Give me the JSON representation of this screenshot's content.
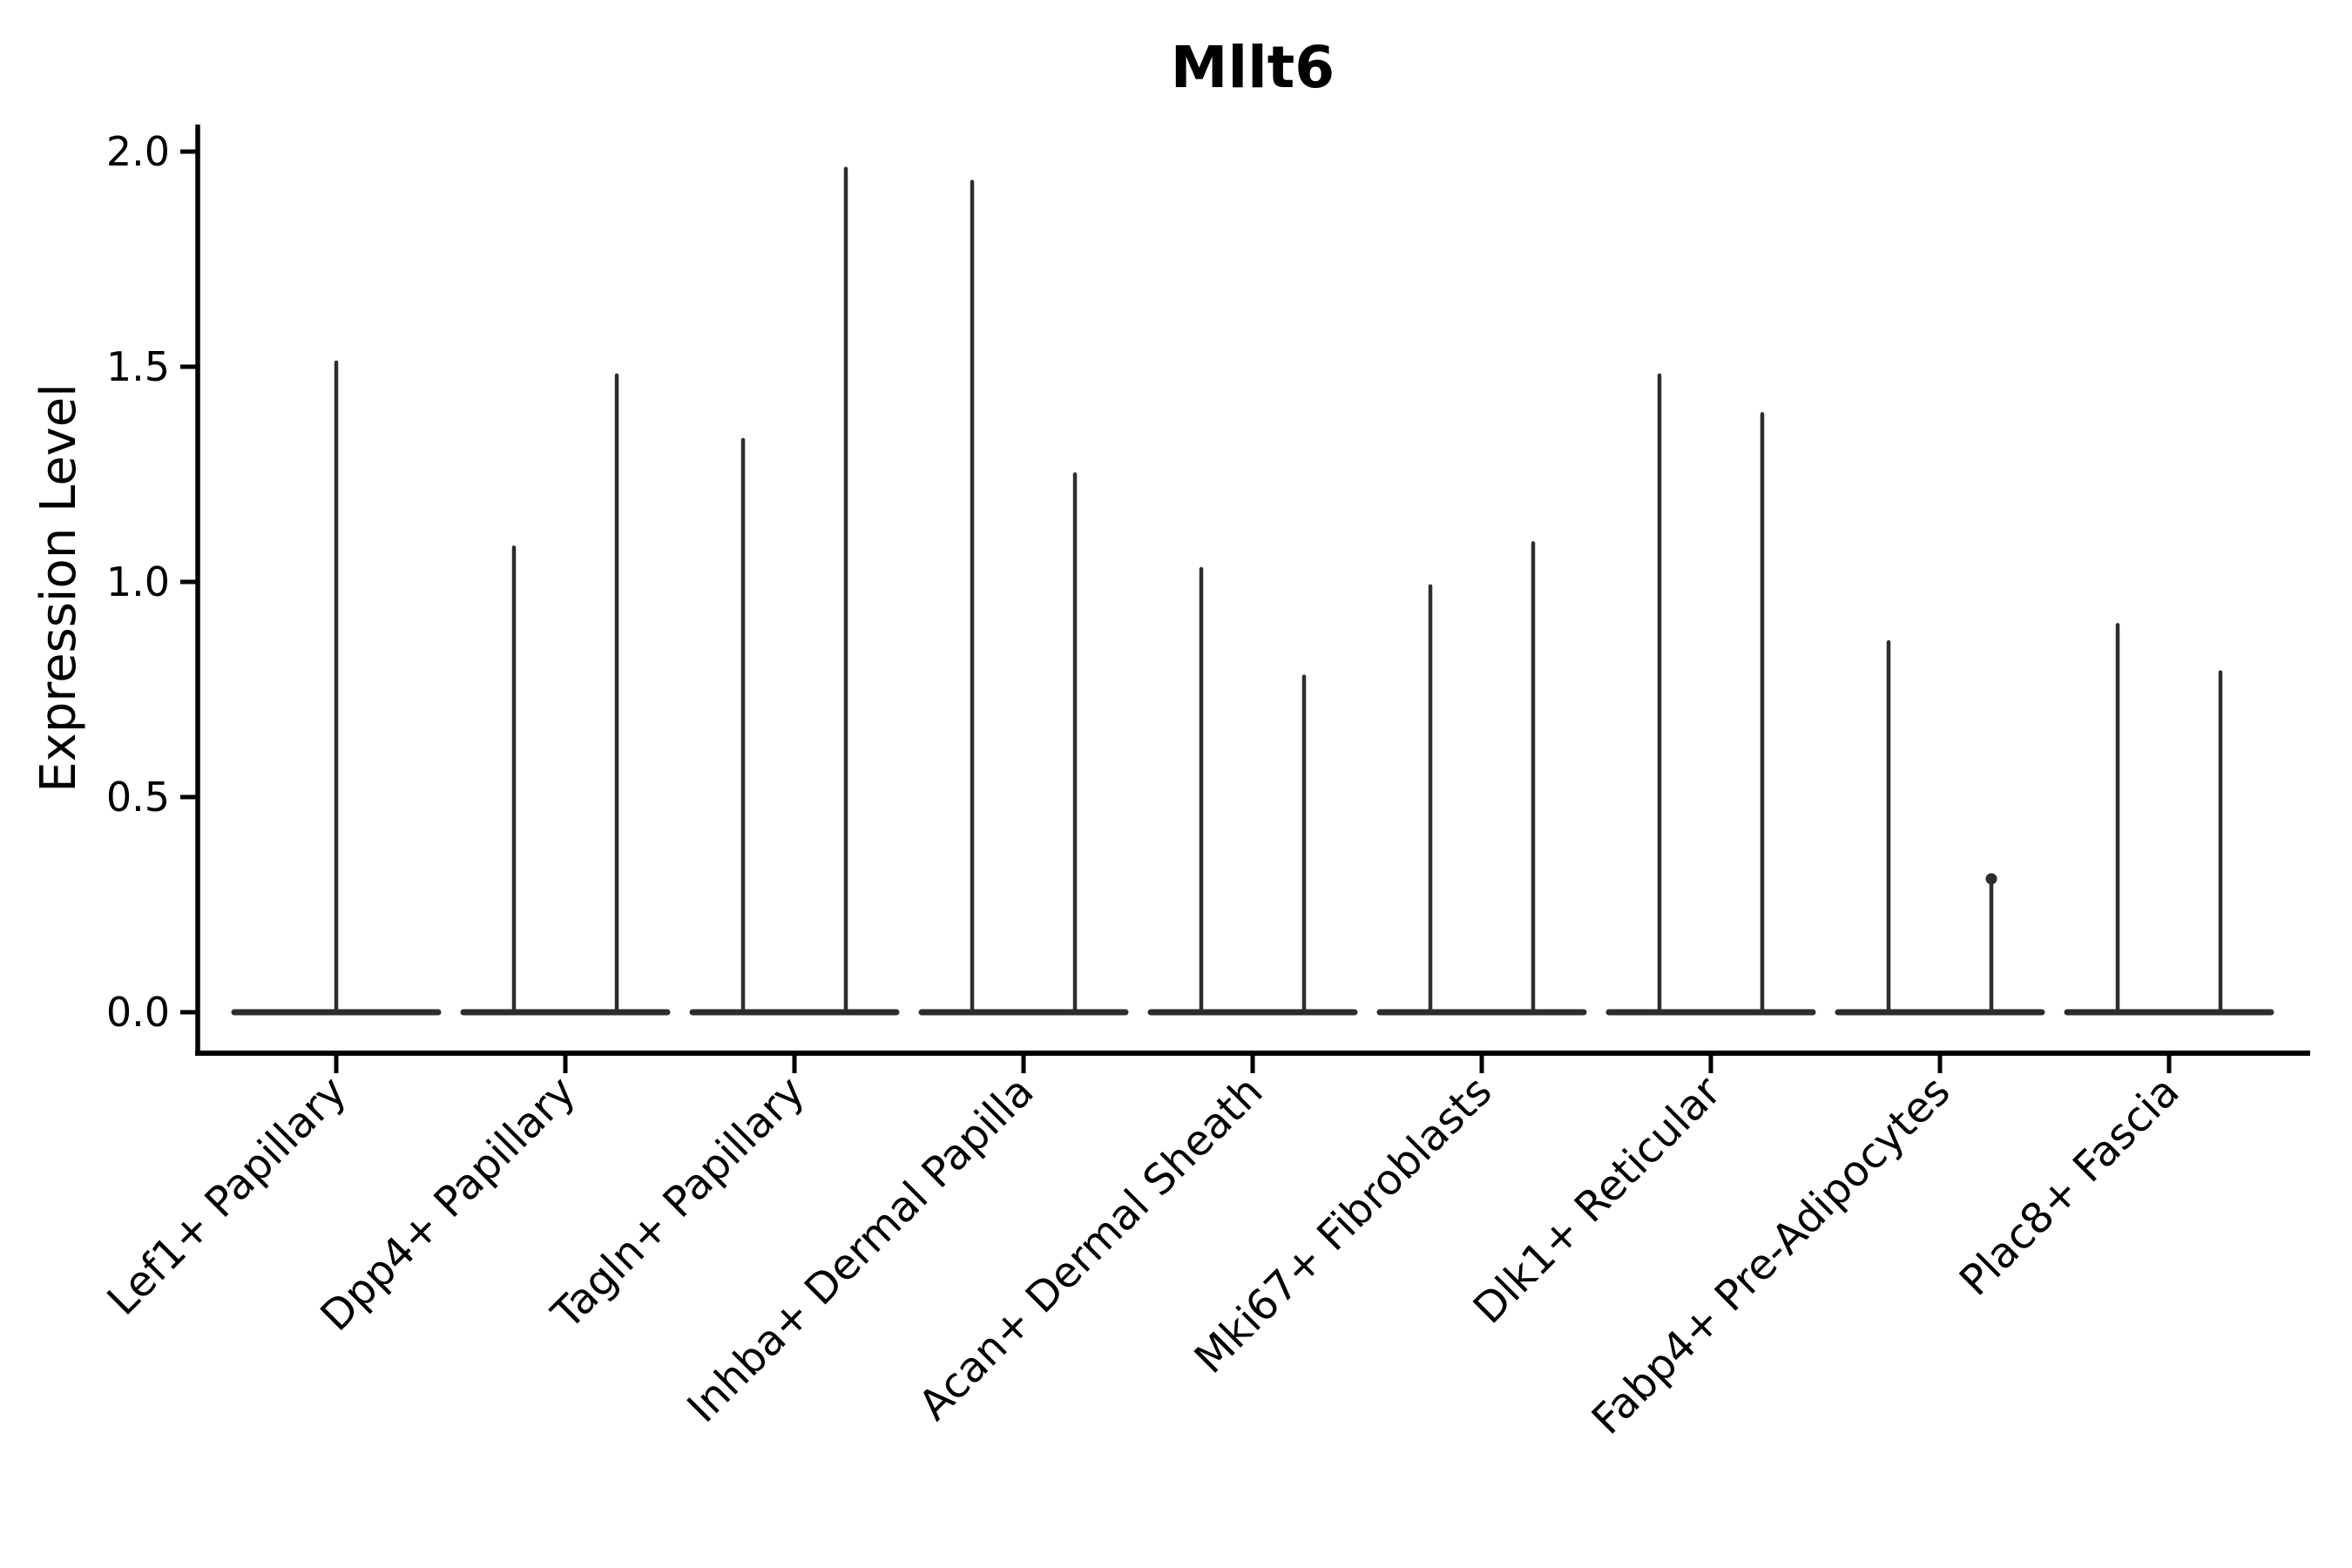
{
  "figure": {
    "title": "Mllt6",
    "ylabel": "Expression Level"
  },
  "chart_data": {
    "type": "violin",
    "title": "Mllt6",
    "xlabel": "",
    "ylabel": "Expression Level",
    "ylim": [
      -0.1,
      2.06
    ],
    "yticks": [
      0.0,
      0.5,
      1.0,
      1.5,
      2.0
    ],
    "ytick_labels": [
      "0.0",
      "0.5",
      "1.0",
      "1.5",
      "2.0"
    ],
    "grid": false,
    "legend": "none",
    "line_color": "#2d2d2d",
    "axis_color": "#000000",
    "background_color": "#ffffff",
    "categories": [
      "Lef1+ Papillary",
      "Dpp4+ Papillary",
      "Tagln+ Papillary",
      "Inhba+ Dermal Papilla",
      "Acan+ Dermal Sheath",
      "Mki67+ Fibroblasts",
      "Dlk1+ Reticular",
      "Fabp4+ Pre-Adipocytes",
      "Plac8+ Fascia"
    ],
    "groups": [
      {
        "category": "Lef1+ Papillary",
        "violins": [
          {
            "max": 1.51
          }
        ]
      },
      {
        "category": "Dpp4+ Papillary",
        "violins": [
          {
            "max": 1.08
          },
          {
            "max": 1.48
          }
        ]
      },
      {
        "category": "Tagln+ Papillary",
        "violins": [
          {
            "max": 1.33
          },
          {
            "max": 1.96
          }
        ]
      },
      {
        "category": "Inhba+ Dermal Papilla",
        "violins": [
          {
            "max": 1.93
          },
          {
            "max": 1.25
          }
        ]
      },
      {
        "category": "Acan+ Dermal Sheath",
        "violins": [
          {
            "max": 1.03
          },
          {
            "max": 0.78
          }
        ]
      },
      {
        "category": "Mki67+ Fibroblasts",
        "violins": [
          {
            "max": 0.99
          },
          {
            "max": 1.09
          }
        ]
      },
      {
        "category": "Dlk1+ Reticular",
        "violins": [
          {
            "max": 1.48
          },
          {
            "max": 1.39
          }
        ]
      },
      {
        "category": "Fabp4+ Pre-Adipocytes",
        "violins": [
          {
            "max": 0.86
          },
          {
            "max": 0.31,
            "tip_dot": true
          }
        ]
      },
      {
        "category": "Plac8+ Fascia",
        "violins": [
          {
            "max": 0.9
          },
          {
            "max": 0.79
          }
        ]
      }
    ],
    "description": "Expression violin plot: every violin is flattened at 0 (wide horizontal bar) with a thin vertical spike up to that population's maximum expression value."
  }
}
